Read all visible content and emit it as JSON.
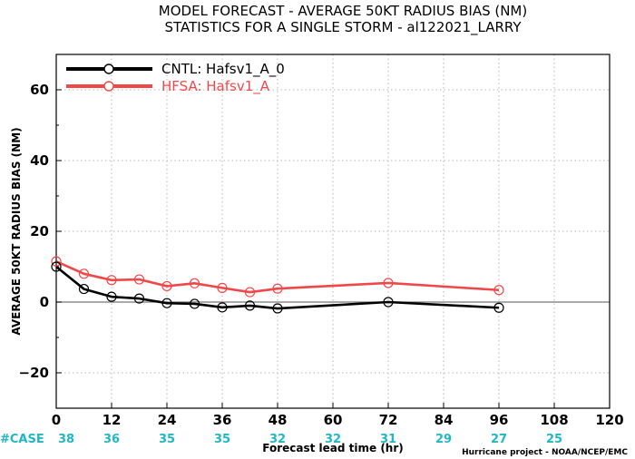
{
  "chart_data": {
    "type": "line",
    "title": "MODEL FORECAST - AVERAGE 50KT RADIUS BIAS (NM)",
    "subtitle": "STATISTICS FOR A SINGLE STORM - al122021_LARRY",
    "xlabel": "Forecast lead time (hr)",
    "ylabel": "AVERAGE 50KT RADIUS BIAS (NM)",
    "xlim": [
      0,
      120
    ],
    "ylim": [
      -30,
      70
    ],
    "xticks": [
      0,
      12,
      24,
      36,
      48,
      60,
      72,
      84,
      96,
      108,
      120
    ],
    "yticks": [
      -20,
      0,
      20,
      40,
      60
    ],
    "grid": true,
    "legend_position": "top-left",
    "series": [
      {
        "name": "CNTL: Hafsv1_A_0",
        "color": "#000000",
        "x": [
          0,
          6,
          12,
          18,
          24,
          30,
          36,
          42,
          48,
          72,
          96
        ],
        "y": [
          10,
          3.7,
          1.5,
          1.0,
          -0.3,
          -0.5,
          -1.5,
          -1.0,
          -1.8,
          0,
          -1.6
        ]
      },
      {
        "name": "HFSA: Hafsv1_A",
        "color": "#f04848",
        "x": [
          0,
          6,
          12,
          18,
          24,
          30,
          36,
          42,
          48,
          72,
          96
        ],
        "y": [
          11.5,
          8.0,
          6.2,
          6.4,
          4.5,
          5.3,
          4.0,
          2.8,
          3.8,
          5.4,
          3.4
        ]
      }
    ],
    "case_label": "#CASE",
    "case_counts": [
      {
        "x": 0,
        "n": "38"
      },
      {
        "x": 12,
        "n": "36"
      },
      {
        "x": 24,
        "n": "35"
      },
      {
        "x": 36,
        "n": "35"
      },
      {
        "x": 48,
        "n": "32"
      },
      {
        "x": 60,
        "n": "32"
      },
      {
        "x": 72,
        "n": "31"
      },
      {
        "x": 84,
        "n": "29"
      },
      {
        "x": 96,
        "n": "27"
      },
      {
        "x": 108,
        "n": "25"
      }
    ],
    "credit": "Hurricane project - NOAA/NCEP/EMC",
    "case_color": "#1fb8c4"
  }
}
